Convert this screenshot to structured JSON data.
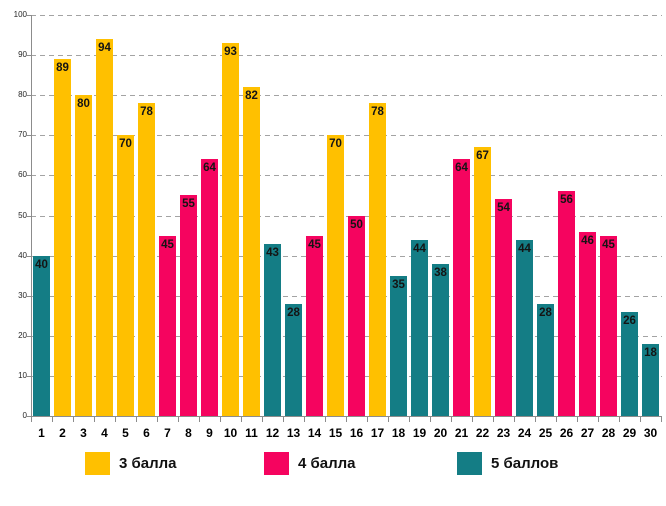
{
  "chart_data": {
    "type": "bar",
    "title": "",
    "xlabel": "",
    "ylabel": "",
    "ylim": [
      0,
      100
    ],
    "ytick_step": 10,
    "grid": "horizontal-dashed",
    "legend_position": "bottom",
    "series": [
      {
        "name": "3 балла",
        "color": "#FFC000"
      },
      {
        "name": "4 балла",
        "color": "#F5045F"
      },
      {
        "name": "5 баллов",
        "color": "#147D85"
      }
    ],
    "categories": [
      "1",
      "2",
      "3",
      "4",
      "5",
      "6",
      "7",
      "8",
      "9",
      "10",
      "11",
      "12",
      "13",
      "14",
      "15",
      "16",
      "17",
      "18",
      "19",
      "20",
      "21",
      "22",
      "23",
      "24",
      "25",
      "26",
      "27",
      "28",
      "29",
      "30"
    ],
    "bars": [
      {
        "category": "1",
        "value": 40,
        "series": "5 баллов"
      },
      {
        "category": "2",
        "value": 89,
        "series": "3 балла"
      },
      {
        "category": "3",
        "value": 80,
        "series": "3 балла"
      },
      {
        "category": "4",
        "value": 94,
        "series": "3 балла"
      },
      {
        "category": "5",
        "value": 70,
        "series": "3 балла"
      },
      {
        "category": "6",
        "value": 78,
        "series": "3 балла"
      },
      {
        "category": "7",
        "value": 45,
        "series": "4 балла"
      },
      {
        "category": "8",
        "value": 55,
        "series": "4 балла"
      },
      {
        "category": "9",
        "value": 64,
        "series": "4 балла"
      },
      {
        "category": "10",
        "value": 93,
        "series": "3 балла"
      },
      {
        "category": "11",
        "value": 82,
        "series": "3 балла"
      },
      {
        "category": "12",
        "value": 43,
        "series": "5 баллов"
      },
      {
        "category": "13",
        "value": 28,
        "series": "5 баллов"
      },
      {
        "category": "14",
        "value": 45,
        "series": "4 балла"
      },
      {
        "category": "15",
        "value": 70,
        "series": "3 балла"
      },
      {
        "category": "16",
        "value": 50,
        "series": "4 балла"
      },
      {
        "category": "17",
        "value": 78,
        "series": "3 балла"
      },
      {
        "category": "18",
        "value": 35,
        "series": "5 баллов"
      },
      {
        "category": "19",
        "value": 44,
        "series": "5 баллов"
      },
      {
        "category": "20",
        "value": 38,
        "series": "5 баллов"
      },
      {
        "category": "21",
        "value": 64,
        "series": "4 балла"
      },
      {
        "category": "22",
        "value": 67,
        "series": "3 балла"
      },
      {
        "category": "23",
        "value": 54,
        "series": "4 балла"
      },
      {
        "category": "24",
        "value": 44,
        "series": "5 баллов"
      },
      {
        "category": "25",
        "value": 28,
        "series": "5 баллов"
      },
      {
        "category": "26",
        "value": 56,
        "series": "4 балла"
      },
      {
        "category": "27",
        "value": 46,
        "series": "4 балла"
      },
      {
        "category": "28",
        "value": 45,
        "series": "4 балла"
      },
      {
        "category": "29",
        "value": 26,
        "series": "5 баллов"
      },
      {
        "category": "30",
        "value": 18,
        "series": "5 баллов"
      }
    ],
    "yticks": [
      0,
      10,
      20,
      30,
      40,
      50,
      60,
      70,
      80,
      90,
      100
    ]
  },
  "legend": {
    "items": [
      {
        "label": "3 балла"
      },
      {
        "label": "4 балла"
      },
      {
        "label": "5 баллов"
      }
    ]
  },
  "colors": {
    "gridline": "#a3a3a3",
    "axis": "#8c8c8c",
    "value_label": "#141414",
    "background": "#ffffff"
  }
}
